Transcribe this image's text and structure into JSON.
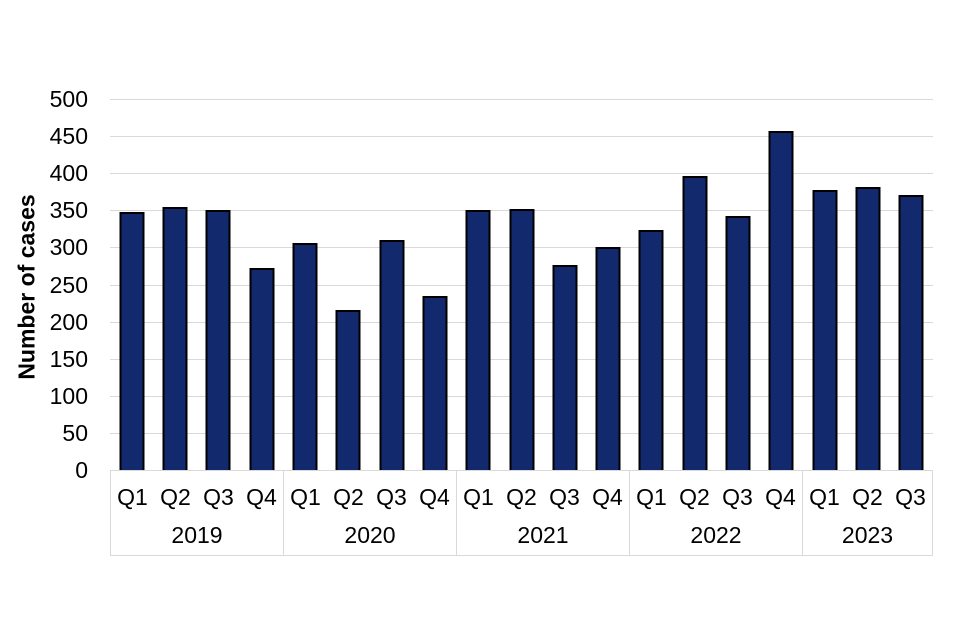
{
  "chart_data": {
    "type": "bar",
    "title": "",
    "xlabel": "",
    "ylabel": "Number of cases",
    "ylim": [
      0,
      500
    ],
    "ytick_step": 50,
    "yticks": [
      0,
      50,
      100,
      150,
      200,
      250,
      300,
      350,
      400,
      450,
      500
    ],
    "grid": "horizontal",
    "legend": "none",
    "bar_color": "#122a6d",
    "bar_border_color": "#000000",
    "gridline_color": "#d9d9d9",
    "axis_box_color": "#d9d9d9",
    "text_color": "#000000",
    "groups": [
      {
        "year": "2019",
        "quarters": [
          "Q1",
          "Q2",
          "Q3",
          "Q4"
        ],
        "values": [
          348,
          355,
          350,
          272
        ]
      },
      {
        "year": "2020",
        "quarters": [
          "Q1",
          "Q2",
          "Q3",
          "Q4"
        ],
        "values": [
          306,
          216,
          310,
          235
        ]
      },
      {
        "year": "2021",
        "quarters": [
          "Q1",
          "Q2",
          "Q3",
          "Q4"
        ],
        "values": [
          350,
          352,
          276,
          300
        ]
      },
      {
        "year": "2022",
        "quarters": [
          "Q1",
          "Q2",
          "Q3",
          "Q4"
        ],
        "values": [
          323,
          396,
          342,
          457
        ]
      },
      {
        "year": "2023",
        "quarters": [
          "Q1",
          "Q2",
          "Q3"
        ],
        "values": [
          378,
          382,
          371
        ]
      }
    ]
  }
}
